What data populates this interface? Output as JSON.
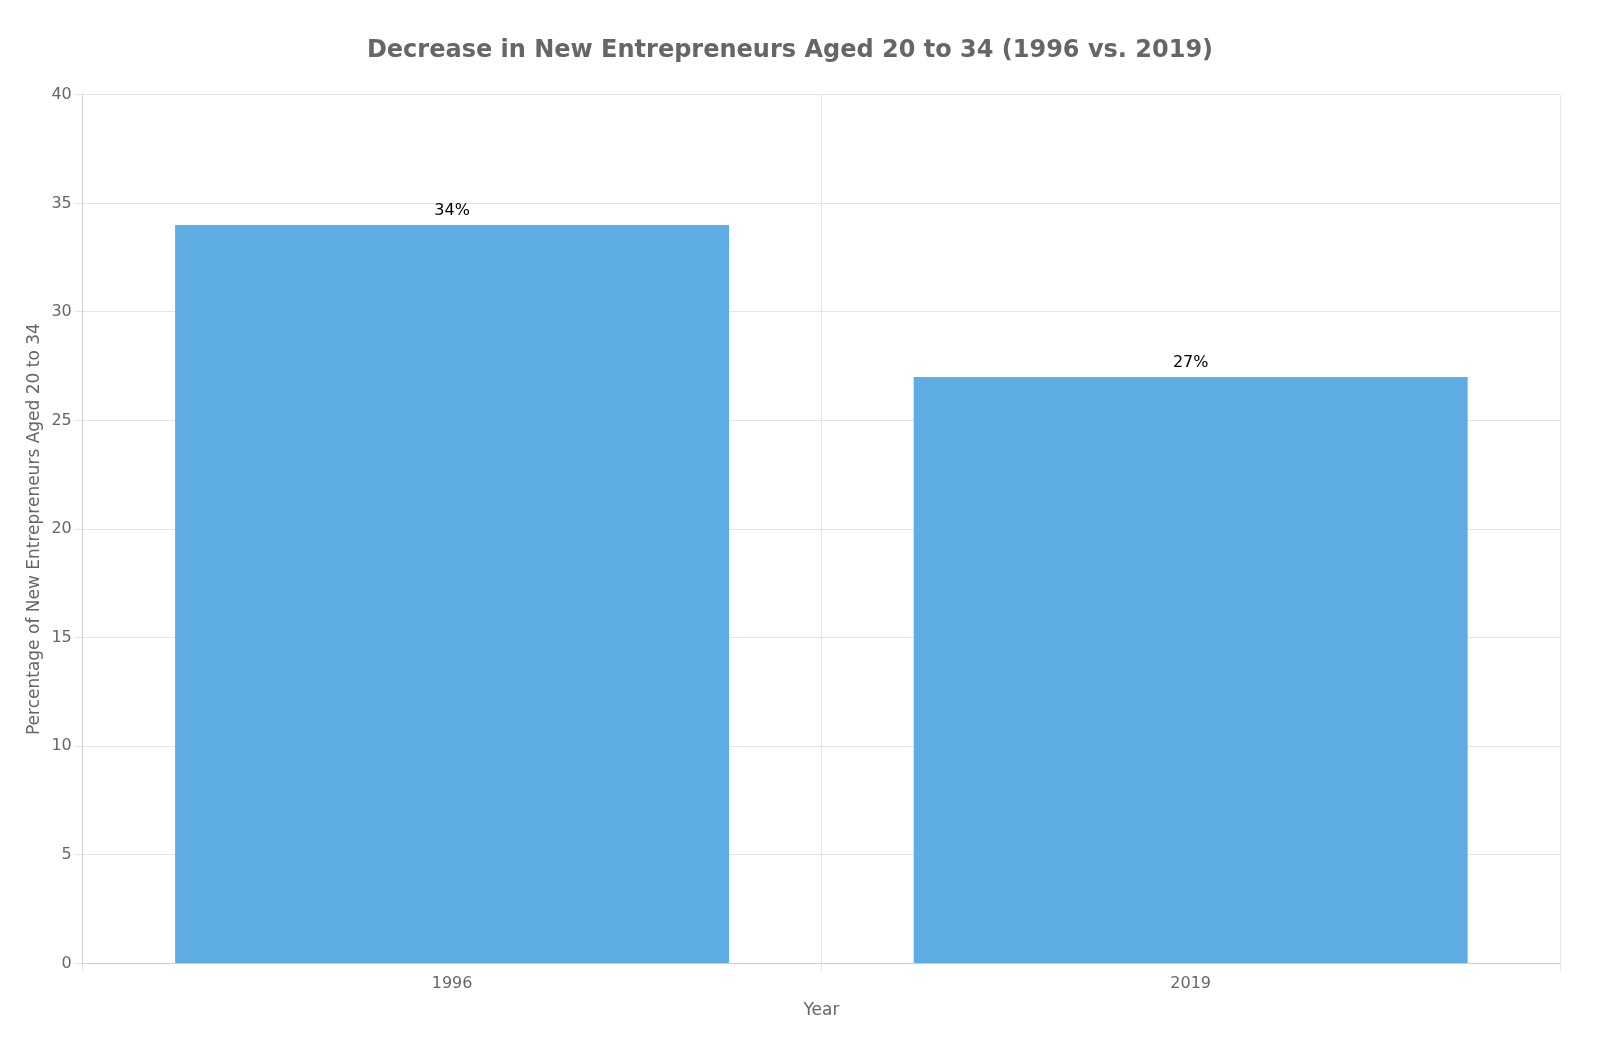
{
  "chart_data": {
    "type": "bar",
    "title": "Decrease in New Entrepreneurs Aged 20 to 34 (1996 vs. 2019)",
    "xlabel": "Year",
    "ylabel": "Percentage of New Entrepreneurs Aged 20 to 34",
    "categories": [
      "1996",
      "2019"
    ],
    "values": [
      34,
      27
    ],
    "value_labels": [
      "34%",
      "27%"
    ],
    "data_labels": true,
    "color": "#5DADE2",
    "ylim": [
      0,
      40
    ],
    "yticks": [
      0,
      5,
      10,
      15,
      20,
      25,
      30,
      35,
      40
    ],
    "grid": true
  }
}
